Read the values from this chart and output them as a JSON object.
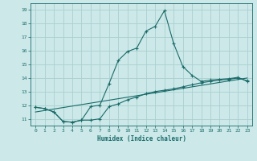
{
  "xlabel": "Humidex (Indice chaleur)",
  "ylabel": "",
  "bg_color": "#cce8e8",
  "grid_color": "#aacfcf",
  "line_color": "#1a6b6b",
  "xlim": [
    -0.5,
    23.5
  ],
  "ylim": [
    10.5,
    19.5
  ],
  "yticks": [
    11,
    12,
    13,
    14,
    15,
    16,
    17,
    18,
    19
  ],
  "xticks": [
    0,
    1,
    2,
    3,
    4,
    5,
    6,
    7,
    8,
    9,
    10,
    11,
    12,
    13,
    14,
    15,
    16,
    17,
    18,
    19,
    20,
    21,
    22,
    23
  ],
  "line1_x": [
    0,
    1,
    2,
    3,
    4,
    5,
    6,
    7,
    8,
    9,
    10,
    11,
    12,
    13,
    14,
    15,
    16,
    17,
    18,
    19,
    20,
    21,
    22,
    23
  ],
  "line1_y": [
    11.85,
    11.75,
    11.5,
    10.8,
    10.75,
    10.9,
    10.9,
    11.0,
    11.9,
    12.1,
    12.4,
    12.6,
    12.85,
    13.0,
    13.1,
    13.2,
    13.35,
    13.5,
    13.65,
    13.75,
    13.85,
    13.9,
    14.0,
    13.8
  ],
  "line2_x": [
    0,
    1,
    2,
    3,
    4,
    5,
    6,
    7,
    8,
    9,
    10,
    11,
    12,
    13,
    14,
    15,
    16,
    17,
    18,
    19,
    20,
    21,
    22,
    23
  ],
  "line2_y": [
    11.85,
    11.75,
    11.5,
    10.8,
    10.75,
    10.9,
    11.9,
    12.0,
    13.6,
    15.3,
    15.95,
    16.2,
    17.45,
    17.8,
    18.95,
    16.55,
    14.85,
    14.2,
    13.75,
    13.85,
    13.9,
    13.95,
    14.05,
    13.75
  ],
  "trend_x": [
    0,
    23
  ],
  "trend_y": [
    11.5,
    14.0
  ]
}
